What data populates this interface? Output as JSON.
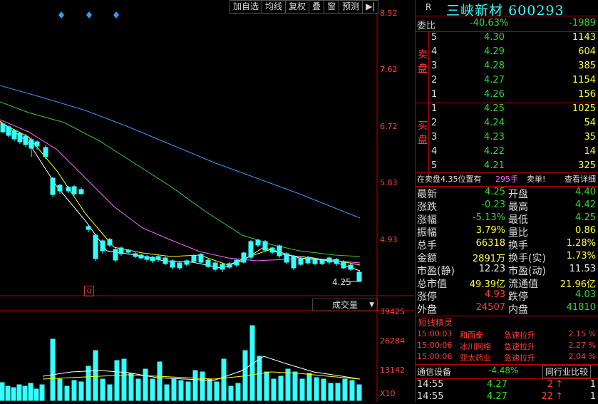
{
  "header": {
    "r_label": "R",
    "stock_name": "三峡新材",
    "stock_code": "600293"
  },
  "toolbar": [
    "加自选",
    "均线",
    "复权",
    "叠",
    "窗",
    "预测",
    "▶|"
  ],
  "price_axis": [
    "8.52",
    "7.62",
    "6.72",
    "5.83",
    "4.93"
  ],
  "current_price_tag": "4.25",
  "q_marker": "q",
  "volume_header": "成交量",
  "volume_axis": [
    "39425",
    "26284",
    "13142",
    "X10"
  ],
  "order_ratio": {
    "label": "委比",
    "pct": "-40.63%",
    "diff": "-1989"
  },
  "sell_label": [
    "卖",
    "盘"
  ],
  "buy_label": [
    "买",
    "盘"
  ],
  "asks": [
    {
      "level": "5",
      "price": "4.30",
      "vol": "1143"
    },
    {
      "level": "4",
      "price": "4.29",
      "vol": "604"
    },
    {
      "level": "3",
      "price": "4.28",
      "vol": "385"
    },
    {
      "level": "2",
      "price": "4.27",
      "vol": "1154"
    },
    {
      "level": "1",
      "price": "4.26",
      "vol": "156"
    }
  ],
  "bids": [
    {
      "level": "1",
      "price": "4.25",
      "vol": "1025"
    },
    {
      "level": "2",
      "price": "4.24",
      "vol": "54"
    },
    {
      "level": "3",
      "price": "4.23",
      "vol": "35"
    },
    {
      "level": "4",
      "price": "4.22",
      "vol": "14"
    },
    {
      "level": "5",
      "price": "4.21",
      "vol": "325"
    }
  ],
  "position_bar": {
    "text": "在卖盘4.35位置有",
    "vol": "295手",
    "action": "卖单!",
    "detail": "查看详细"
  },
  "stats": [
    {
      "l1": "最新",
      "v1": "4.25",
      "c1": "green",
      "l2": "开盘",
      "v2": "4.40",
      "c2": "green"
    },
    {
      "l1": "涨跌",
      "v1": "-0.23",
      "c1": "green",
      "l2": "最高",
      "v2": "4.42",
      "c2": "green"
    },
    {
      "l1": "涨幅",
      "v1": "-5.13%",
      "c1": "green",
      "l2": "最低",
      "v2": "4.25",
      "c2": "green"
    },
    {
      "l1": "振幅",
      "v1": "3.79%",
      "c1": "yellow",
      "l2": "量比",
      "v2": "0.86",
      "c2": "yellow"
    },
    {
      "l1": "总手",
      "v1": "66318",
      "c1": "yellow",
      "l2": "换手",
      "v2": "1.28%",
      "c2": "yellow"
    },
    {
      "l1": "金额",
      "v1": "2891万",
      "c1": "yellow",
      "l2": "换手(实)",
      "v2": "1.73%",
      "c2": "yellow"
    },
    {
      "l1": "市盈(静)",
      "v1": "12.23",
      "c1": "white",
      "l2": "市盈(动)",
      "v2": "11.53",
      "c2": "white"
    },
    {
      "l1": "总市值",
      "v1": "49.39亿",
      "c1": "yellow",
      "l2": "流通值",
      "v2": "21.96亿",
      "c2": "yellow"
    },
    {
      "l1": "涨停",
      "v1": "4.93",
      "c1": "red",
      "l2": "跌停",
      "v2": "4.03",
      "c2": "green"
    },
    {
      "l1": "外盘",
      "v1": "24507",
      "c1": "red",
      "l2": "内盘",
      "v2": "41810",
      "c2": "green"
    }
  ],
  "elves_title": "短线精灵",
  "elves": [
    {
      "time": "15:00:03",
      "name": "和而泰",
      "event": "急速拉升",
      "pct": "2.15 %"
    },
    {
      "time": "15:00:06",
      "name": "冰川网络",
      "event": "急速拉升",
      "pct": "2.27 %"
    },
    {
      "time": "15:00:06",
      "name": "亚太药业",
      "event": "急速拉升",
      "pct": "2.04 %"
    }
  ],
  "sector": {
    "name": "通信设备",
    "pct": "-4.48%",
    "button": "同行业比较"
  },
  "ticks": [
    {
      "time": "14:55",
      "price": "4.27",
      "vol": "2",
      "arrow": "↑",
      "count": "1"
    },
    {
      "time": "14:55",
      "price": "4.27",
      "vol": "22",
      "arrow": "↑",
      "count": "1"
    }
  ],
  "colors": {
    "up": "#ff3c3c",
    "down": "#33ffff",
    "ma5": "#ffffff",
    "ma10": "#ffff00",
    "ma20": "#ff66ff",
    "ma30": "#33cc33",
    "ma60": "#3399ff"
  }
}
